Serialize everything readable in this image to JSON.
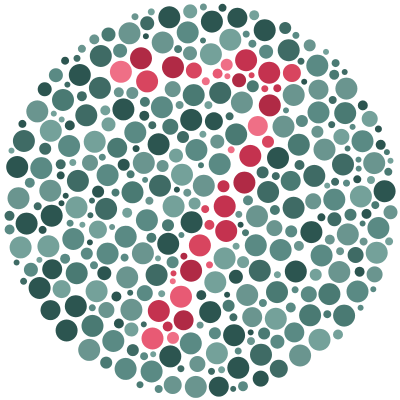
{
  "plate": {
    "kind": "color-vision-test-plate",
    "hidden_numeral": "7",
    "background_colors": [
      "#3f6b65",
      "#5a8a84",
      "#2c5550",
      "#74a19a",
      "#4a7a73",
      "#6a958f"
    ],
    "figure_colors": [
      "#c4324f",
      "#e85a74",
      "#d8455f",
      "#b02a45",
      "#ef6f86"
    ],
    "page_background": "#ffffff"
  }
}
